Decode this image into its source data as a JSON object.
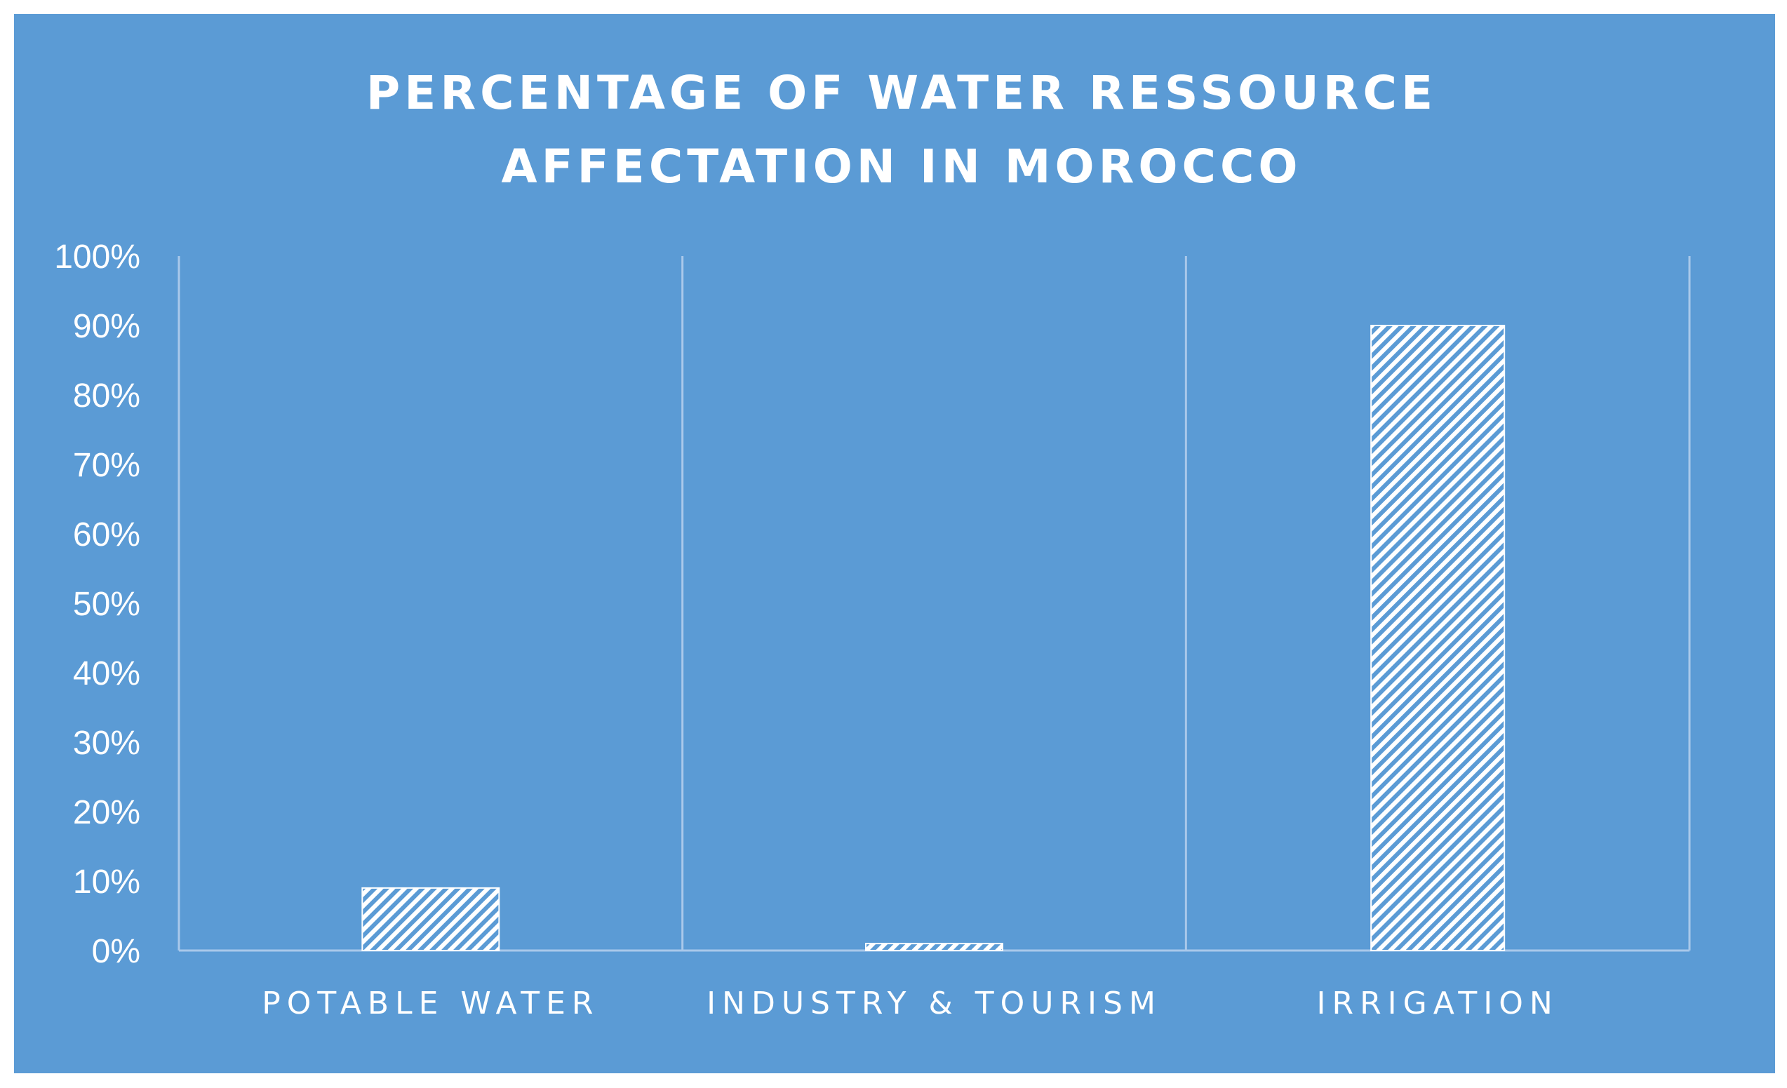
{
  "chart_data": {
    "type": "bar",
    "title_lines": [
      "PERCENTAGE OF WATER RESSOURCE",
      "AFFECTATION IN MOROCCO"
    ],
    "categories": [
      "POTABLE WATER",
      "INDUSTRY & TOURISM",
      "IRRIGATION"
    ],
    "values": [
      9,
      1,
      90
    ],
    "unit": "%",
    "ylim": [
      0,
      100
    ],
    "yticks": [
      "0%",
      "10%",
      "20%",
      "30%",
      "40%",
      "50%",
      "60%",
      "70%",
      "80%",
      "90%",
      "100%"
    ],
    "xlabel": "",
    "ylabel": "",
    "grid": "vertical category separators",
    "legend": "none"
  },
  "colors": {
    "background": "#5b9bd5",
    "bar_fill": "#ffffff",
    "grid": "#a9c8ea",
    "text": "#ffffff"
  }
}
